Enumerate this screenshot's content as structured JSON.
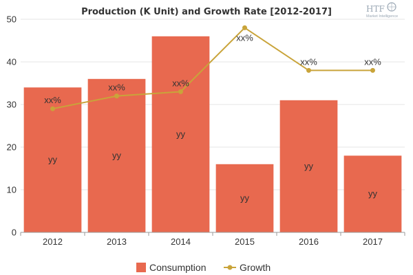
{
  "chart_data": {
    "type": "bar",
    "title": "Production (K Unit) and Growth Rate [2012-2017]",
    "categories": [
      "2012",
      "2013",
      "2014",
      "2015",
      "2016",
      "2017"
    ],
    "series": [
      {
        "name": "Consumption",
        "type": "bar",
        "values": [
          34,
          36,
          46,
          16,
          31,
          18
        ],
        "labels": [
          "yy",
          "yy",
          "yy",
          "yy",
          "yy",
          "yy"
        ],
        "color": "#e8694f"
      },
      {
        "name": "Growth",
        "type": "line",
        "values": [
          29,
          32,
          33,
          48,
          38,
          38
        ],
        "labels": [
          "xx%",
          "xx%",
          "xx%",
          "xx%",
          "xx%",
          "xx%"
        ],
        "color": "#c9a43a"
      }
    ],
    "ylim": [
      0,
      50
    ],
    "yticks": [
      0,
      10,
      20,
      30,
      40,
      50
    ],
    "grid": true,
    "legend": "bottom-center"
  },
  "watermark": {
    "brand": "HTF",
    "sub": "Market Intelligence"
  }
}
